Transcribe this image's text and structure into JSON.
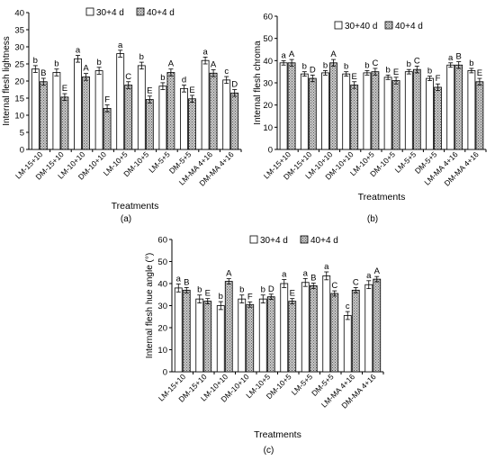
{
  "chart_data": [
    {
      "type": "bar",
      "panel_label": "(a)",
      "ylabel": "Internal flesh lightness",
      "xlabel": "Treatments",
      "ylim": [
        0,
        40
      ],
      "yticks": [
        0,
        5,
        10,
        15,
        20,
        25,
        30,
        35,
        40
      ],
      "categories": [
        "LM-15+10",
        "DM-15+10",
        "LM-10+10",
        "DM-10+10",
        "LM-10+5",
        "DM-10+5",
        "LM-5+5",
        "DM-5+5",
        "LM-MA 4+16",
        "DM-MA 4+16"
      ],
      "series": [
        {
          "name": "30+4 d",
          "values": [
            23.5,
            22.5,
            26.5,
            23,
            28,
            24.5,
            18.5,
            17.8,
            26,
            20.3
          ],
          "errors": [
            1,
            1,
            1,
            1,
            1,
            1,
            1,
            1,
            1,
            1
          ],
          "letters": [
            "b",
            "b",
            "a",
            "b",
            "a",
            "b",
            "b",
            "d",
            "a",
            "c"
          ]
        },
        {
          "name": "40+4 d",
          "values": [
            19.8,
            15.3,
            21.2,
            12,
            18.8,
            14.6,
            22.5,
            14.8,
            22.3,
            16.5
          ],
          "errors": [
            1,
            1,
            1,
            1,
            1,
            1,
            1,
            1,
            1,
            1
          ],
          "letters": [
            "B",
            "E",
            "A",
            "F",
            "C",
            "E",
            "A",
            "E",
            "A",
            "D"
          ]
        }
      ]
    },
    {
      "type": "bar",
      "panel_label": "(b)",
      "ylabel": "Internal flesh chroma",
      "xlabel": "Treatments",
      "ylim": [
        0,
        60
      ],
      "yticks": [
        0,
        10,
        20,
        30,
        40,
        50,
        60
      ],
      "categories": [
        "LM-15+10",
        "DM-15+10",
        "LM-10+10",
        "DM-10+10",
        "LM-10+5",
        "DM-10+5",
        "LM-5+5",
        "DM-5+5",
        "LM-MA 4+16",
        "DM-MA 4+16"
      ],
      "series": [
        {
          "name": "30+40 d",
          "values": [
            39,
            34,
            34.5,
            34,
            34.5,
            32.5,
            35,
            32,
            38,
            35.5
          ],
          "errors": [
            1,
            1,
            1,
            1,
            1,
            1,
            1,
            1,
            1,
            1
          ],
          "letters": [
            "a",
            "b",
            "b",
            "b",
            "b",
            "b",
            "b",
            "b",
            "a",
            "b"
          ]
        },
        {
          "name": "40+4 d",
          "values": [
            39,
            32,
            39,
            29,
            35,
            31,
            36,
            28,
            38,
            30.5
          ],
          "errors": [
            1.5,
            1.5,
            1.5,
            1.5,
            1.5,
            1.5,
            1.5,
            1.5,
            1.5,
            1.5
          ],
          "letters": [
            "A",
            "D",
            "A",
            "E",
            "C",
            "E",
            "C",
            "F",
            "B",
            "E"
          ]
        }
      ]
    },
    {
      "type": "bar",
      "panel_label": "(c)",
      "ylabel": "Internal flesh hue angle (°)",
      "xlabel": "Treatments",
      "ylim": [
        0,
        60
      ],
      "yticks": [
        0,
        10,
        20,
        30,
        40,
        50,
        60
      ],
      "categories": [
        "LM-15+10",
        "DM-15+10",
        "LM-10+10",
        "DM-10+10",
        "LM-10+5",
        "DM-10+5",
        "LM-5+5",
        "DM-5+5",
        "LM-MA 4+16",
        "DM-MA 4+16"
      ],
      "series": [
        {
          "name": "30+4 d",
          "values": [
            38,
            33,
            30,
            33,
            33,
            40,
            40.5,
            43.5,
            25.5,
            39.5
          ],
          "errors": [
            1.8,
            1.8,
            1.8,
            1.8,
            1.8,
            1.8,
            1.8,
            1.8,
            1.8,
            1.8
          ],
          "letters": [
            "a",
            "b",
            "b",
            "b",
            "b",
            "a",
            "a",
            "a",
            "c",
            "a"
          ]
        },
        {
          "name": "40+4 d",
          "values": [
            37,
            32,
            41,
            30.5,
            34,
            32,
            39,
            35.5,
            37,
            42
          ],
          "errors": [
            1.2,
            1.2,
            1.2,
            1.2,
            1.2,
            1.2,
            1.2,
            1.2,
            1.2,
            1.2
          ],
          "letters": [
            "B",
            "E",
            "A",
            "F",
            "D",
            "E",
            "B",
            "C",
            "C",
            "A"
          ]
        }
      ]
    }
  ]
}
